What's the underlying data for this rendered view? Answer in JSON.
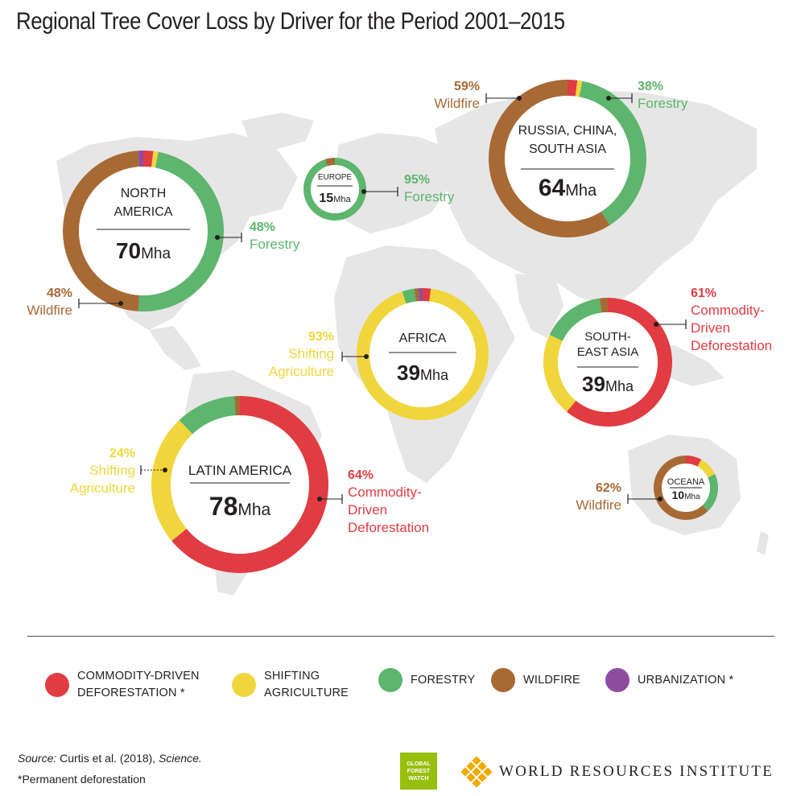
{
  "title": "Regional Tree Cover Loss by Driver for the Period 2001–2015",
  "colors": {
    "commodity": "#e03c42",
    "shifting": "#f0d63c",
    "forestry": "#5db56e",
    "wildfire": "#a86a35",
    "urbanization": "#8e4c9f",
    "map_land": "#e6e6e6",
    "rule": "#4d4d4d"
  },
  "chart_data": {
    "type": "donut-map",
    "units": "Mha",
    "drivers": [
      "Commodity-driven deforestation",
      "Shifting agriculture",
      "Forestry",
      "Wildfire",
      "Urbanization"
    ],
    "regions": [
      {
        "id": "north-america",
        "name_lines": [
          "NORTH",
          "AMERICA"
        ],
        "total_value": "70",
        "total_unit": "Mha",
        "shares": {
          "commodity": 2,
          "shifting": 1,
          "forestry": 48,
          "wildfire": 48,
          "urbanization": 1
        },
        "callouts": [
          {
            "id": "forestry",
            "pct": "48%",
            "lines": [
              "Forestry"
            ],
            "color": "forestry"
          },
          {
            "id": "wildfire",
            "pct": "48%",
            "lines": [
              "Wildfire"
            ],
            "color": "wildfire"
          }
        ]
      },
      {
        "id": "europe",
        "name_lines": [
          "EUROPE"
        ],
        "total_value": "15",
        "total_unit": "Mha",
        "shares": {
          "commodity": 0,
          "shifting": 0,
          "forestry": 95,
          "wildfire": 5,
          "urbanization": 0
        },
        "callouts": [
          {
            "id": "forestry",
            "pct": "95%",
            "lines": [
              "Forestry"
            ],
            "color": "forestry"
          }
        ]
      },
      {
        "id": "russia-china-south-asia",
        "name_lines": [
          "RUSSIA, CHINA,",
          "SOUTH ASIA"
        ],
        "total_value": "64",
        "total_unit": "Mha",
        "shares": {
          "commodity": 2,
          "shifting": 1,
          "forestry": 38,
          "wildfire": 59,
          "urbanization": 0
        },
        "callouts": [
          {
            "id": "wildfire",
            "pct": "59%",
            "lines": [
              "Wildfire"
            ],
            "color": "wildfire"
          },
          {
            "id": "forestry",
            "pct": "38%",
            "lines": [
              "Forestry"
            ],
            "color": "forestry"
          }
        ]
      },
      {
        "id": "africa",
        "name_lines": [
          "AFRICA"
        ],
        "total_value": "39",
        "total_unit": "Mha",
        "shares": {
          "commodity": 2,
          "shifting": 93,
          "forestry": 3,
          "wildfire": 1,
          "urbanization": 1
        },
        "callouts": [
          {
            "id": "shifting",
            "pct": "93%",
            "lines": [
              "Shifting",
              "Agriculture"
            ],
            "color": "shifting"
          }
        ]
      },
      {
        "id": "southeast-asia",
        "name_lines": [
          "SOUTH-",
          "EAST ASIA"
        ],
        "total_value": "39",
        "total_unit": "Mha",
        "shares": {
          "commodity": 61,
          "shifting": 21,
          "forestry": 16,
          "wildfire": 2,
          "urbanization": 0
        },
        "callouts": [
          {
            "id": "commodity",
            "pct": "61%",
            "lines": [
              "Commodity-",
              "Driven",
              "Deforestation"
            ],
            "color": "commodity"
          }
        ]
      },
      {
        "id": "latin-america",
        "name_lines": [
          "LATIN AMERICA"
        ],
        "total_value": "78",
        "total_unit": "Mha",
        "shares": {
          "commodity": 64,
          "shifting": 24,
          "forestry": 11,
          "wildfire": 1,
          "urbanization": 0
        },
        "callouts": [
          {
            "id": "shifting",
            "pct": "24%",
            "lines": [
              "Shifting",
              "Agriculture"
            ],
            "color": "shifting"
          },
          {
            "id": "commodity",
            "pct": "64%",
            "lines": [
              "Commodity-",
              "Driven",
              "Deforestation"
            ],
            "color": "commodity"
          }
        ]
      },
      {
        "id": "oceania",
        "name_lines": [
          "OCEANA"
        ],
        "total_value": "10",
        "total_unit": "Mha",
        "shares": {
          "commodity": 8,
          "shifting": 10,
          "forestry": 20,
          "wildfire": 62,
          "urbanization": 0
        },
        "callouts": [
          {
            "id": "wildfire",
            "pct": "62%",
            "lines": [
              "Wildfire"
            ],
            "color": "wildfire"
          }
        ]
      }
    ]
  },
  "legend": [
    {
      "key": "commodity",
      "label": "COMMODITY-DRIVEN\nDEFORESTATION *"
    },
    {
      "key": "shifting",
      "label": "SHIFTING\nAGRICULTURE"
    },
    {
      "key": "forestry",
      "label": "FORESTRY"
    },
    {
      "key": "wildfire",
      "label": "WILDFIRE"
    },
    {
      "key": "urbanization",
      "label": "URBANIZATION *"
    }
  ],
  "footer": {
    "source_prefix": "Source:",
    "source_text": " Curtis et al. (2018), ",
    "source_journal": "Science.",
    "footnote": "*Permanent deforestation",
    "gfw_logo_lines": [
      "GLOBAL",
      "FOREST",
      "WATCH"
    ],
    "wri_name": "WORLD RESOURCES INSTITUTE"
  }
}
